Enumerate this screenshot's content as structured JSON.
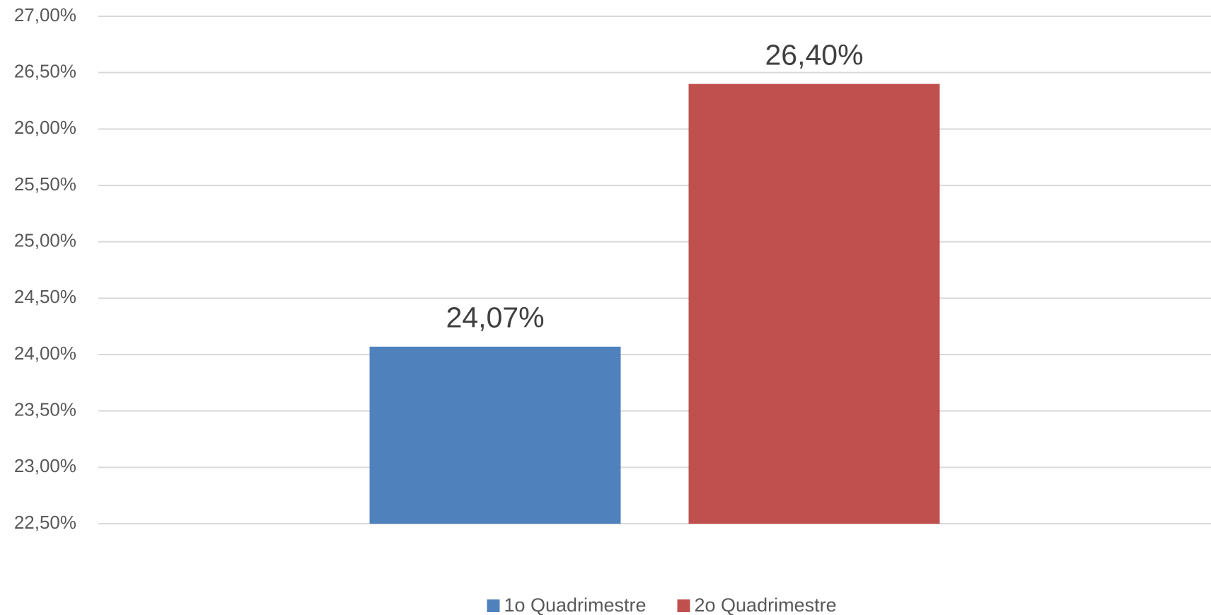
{
  "chart_data": {
    "type": "bar",
    "categories": [
      null
    ],
    "series": [
      {
        "name": "1o Quadrimestre",
        "color": "#4f81bd",
        "values": [
          24.07
        ],
        "value_labels": [
          "24,07%"
        ]
      },
      {
        "name": "2o Quadrimestre",
        "color": "#c0504d",
        "values": [
          26.4
        ],
        "value_labels": [
          "26,40%"
        ]
      }
    ],
    "ylim": [
      22.5,
      27
    ],
    "yticks": [
      {
        "value": 22.5,
        "label": "22,50%"
      },
      {
        "value": 23,
        "label": "23,00%"
      },
      {
        "value": 23.5,
        "label": "23,50%"
      },
      {
        "value": 24,
        "label": "24,00%"
      },
      {
        "value": 24.5,
        "label": "24,50%"
      },
      {
        "value": 25,
        "label": "25,00%"
      },
      {
        "value": 25.5,
        "label": "25,50%"
      },
      {
        "value": 26,
        "label": "26,00%"
      },
      {
        "value": 26.5,
        "label": "26,50%"
      },
      {
        "value": 27,
        "label": "27,00%"
      }
    ],
    "grid": true,
    "legend": "bottom"
  }
}
